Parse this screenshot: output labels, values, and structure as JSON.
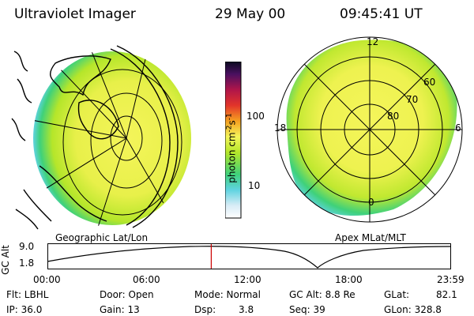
{
  "header": {
    "title": "Ultraviolet Imager",
    "date": "29 May 00",
    "time": "09:45:41 UT"
  },
  "maps": {
    "left_label": "Geographic Lat/Lon",
    "right_label": "Apex MLat/MLT",
    "mlt_labels": [
      "12",
      "18",
      "6",
      "0"
    ],
    "mlat_labels": [
      "60",
      "70",
      "80"
    ]
  },
  "colorbar": {
    "label_main": "photon cm",
    "label_sup1": "-2",
    "label_s": "s",
    "label_sup2": "-1",
    "tick_100": "100",
    "tick_10": "10"
  },
  "timeline": {
    "ylabel": "GC Alt",
    "y_ticks": [
      "9.0",
      "1.8"
    ],
    "x_ticks": [
      "00:00",
      "06:00",
      "12:00",
      "18:00",
      "23:59"
    ],
    "marker_time": "09:45:41",
    "marker_color": "#cc0000"
  },
  "info": {
    "flt": "Flt: LBHL",
    "ip": "IP: 36.0",
    "door": "Door: Open",
    "gain": "Gain: 13",
    "mode": "Mode: Normal",
    "dsp_label": "Dsp:",
    "dsp_value": "3.8",
    "gcalt": "GC Alt: 8.8 Re",
    "seq": "Seq: 39",
    "glat": "GLat:",
    "glat_value": "82.1",
    "glon": "GLon: 328.8"
  }
}
